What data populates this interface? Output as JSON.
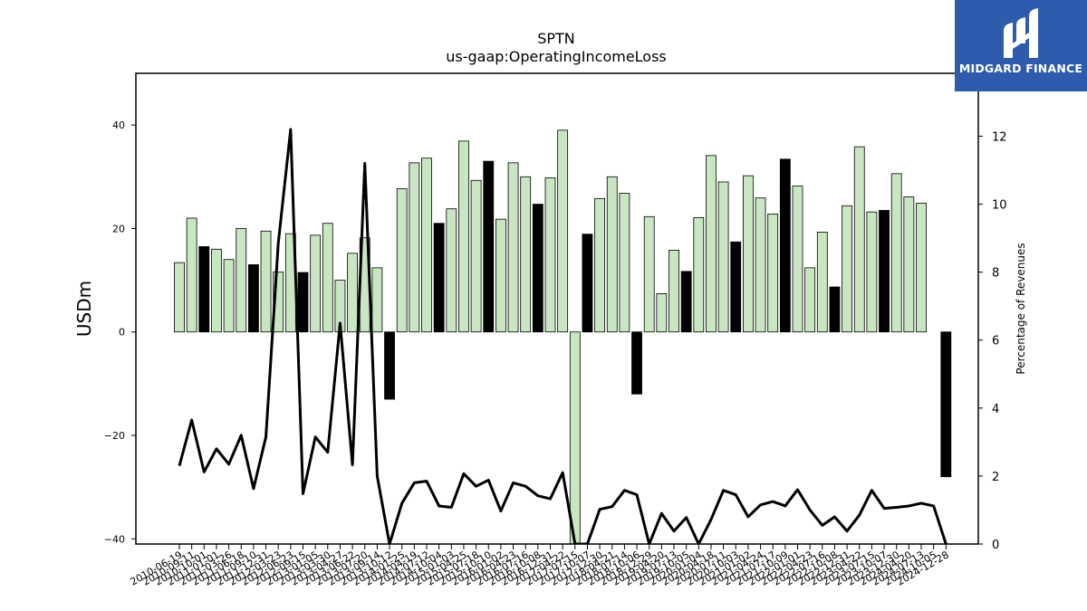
{
  "chart_data": {
    "type": "bar",
    "title": "SPTN",
    "subtitle": "us-gaap:OperatingIncomeLoss",
    "ylabel": "USDm",
    "y2label": "Percentage of Revenues",
    "ylim": [
      -41,
      50
    ],
    "y2lim": [
      0,
      13.85
    ],
    "yticks": [
      -40,
      -20,
      0,
      20,
      40
    ],
    "y2ticks": [
      0,
      2,
      4,
      6,
      8,
      10,
      12
    ],
    "colors": {
      "bar_light": "#c8e6c1",
      "bar_dark": "#000000",
      "line": "#000000"
    },
    "categories": [
      "2010-06-19",
      "2010-09-11",
      "2010-10-01",
      "2011-01-01",
      "2011-03-26",
      "2011-06-18",
      "2011-09-10",
      "2011-12-31",
      "2012-03-23",
      "2012-06-23",
      "2012-09-15",
      "2013-01-05",
      "2013-03-30",
      "2013-04-27",
      "2013-06-22",
      "2013-07-20",
      "2013-09-14",
      "2013-10-12",
      "2014-01-25",
      "2014-04-19",
      "2014-07-12",
      "2014-10-04",
      "2015-01-03",
      "2015-04-25",
      "2015-07-18",
      "2015-10-10",
      "2016-01-02",
      "2016-04-23",
      "2016-07-16",
      "2016-10-08",
      "2016-12-31",
      "2017-04-22",
      "2017-07-15",
      "2017-10-07",
      "2017-12-30",
      "2018-04-21",
      "2018-07-14",
      "2018-10-06",
      "2018-12-29",
      "2019-04-20",
      "2019-07-13",
      "2019-10-05",
      "2020-01-04",
      "2020-04-18",
      "2020-07-11",
      "2020-10-03",
      "2021-01-02",
      "2021-04-24",
      "2021-07-17",
      "2021-10-09",
      "2022-01-01",
      "2022-04-23",
      "2022-07-16",
      "2022-10-08",
      "2022-12-31",
      "2023-04-22",
      "2023-07-15",
      "2023-10-07",
      "2023-12-30",
      "2024-04-20",
      "2024-07-13",
      "2024-10-05",
      "2024-12-28"
    ],
    "values": [
      13.4,
      22.0,
      16.5,
      16.0,
      14.0,
      20.0,
      13.0,
      19.5,
      11.6,
      19.0,
      11.5,
      18.7,
      21.0,
      10.0,
      15.2,
      18.2,
      12.4,
      -13.0,
      27.7,
      32.7,
      33.6,
      21.0,
      23.8,
      36.9,
      29.3,
      33.0,
      21.8,
      32.7,
      30.0,
      24.7,
      29.8,
      39.0,
      -41.0,
      18.9,
      25.8,
      30.0,
      26.8,
      -12.0,
      22.3,
      7.4,
      15.8,
      11.7,
      22.1,
      34.1,
      29.0,
      17.4,
      30.2,
      25.9,
      22.8,
      33.4,
      28.2,
      12.4,
      19.3,
      8.7,
      24.4,
      35.8,
      23.2,
      23.5,
      30.6,
      26.1,
      24.9,
      0,
      -28.0
    ],
    "dark_bars": [
      2,
      6,
      10,
      17,
      21,
      25,
      29,
      33,
      37,
      41,
      45,
      49,
      53,
      57,
      62
    ],
    "line_pct": [
      2.3,
      3.65,
      2.12,
      2.8,
      2.35,
      3.2,
      1.63,
      3.15,
      8.85,
      12.2,
      1.48,
      3.15,
      2.7,
      6.5,
      2.33,
      11.2,
      2.0,
      0,
      1.2,
      1.8,
      1.85,
      1.12,
      1.08,
      2.07,
      1.7,
      1.88,
      0.97,
      1.8,
      1.7,
      1.42,
      1.33,
      2.1,
      0,
      0,
      1.02,
      1.1,
      1.58,
      1.45,
      0,
      0.9,
      0.38,
      0.78,
      0,
      0.72,
      1.58,
      1.45,
      0.8,
      1.15,
      1.25,
      1.12,
      1.6,
      1.0,
      0.55,
      0.8,
      0.38,
      0.85,
      1.58,
      1.05,
      1.08,
      1.12,
      1.2,
      1.12,
      0
    ]
  },
  "branding": {
    "logo_text": "MIDGARD FINANCE",
    "logo_icon": "midgard-logo-icon"
  }
}
